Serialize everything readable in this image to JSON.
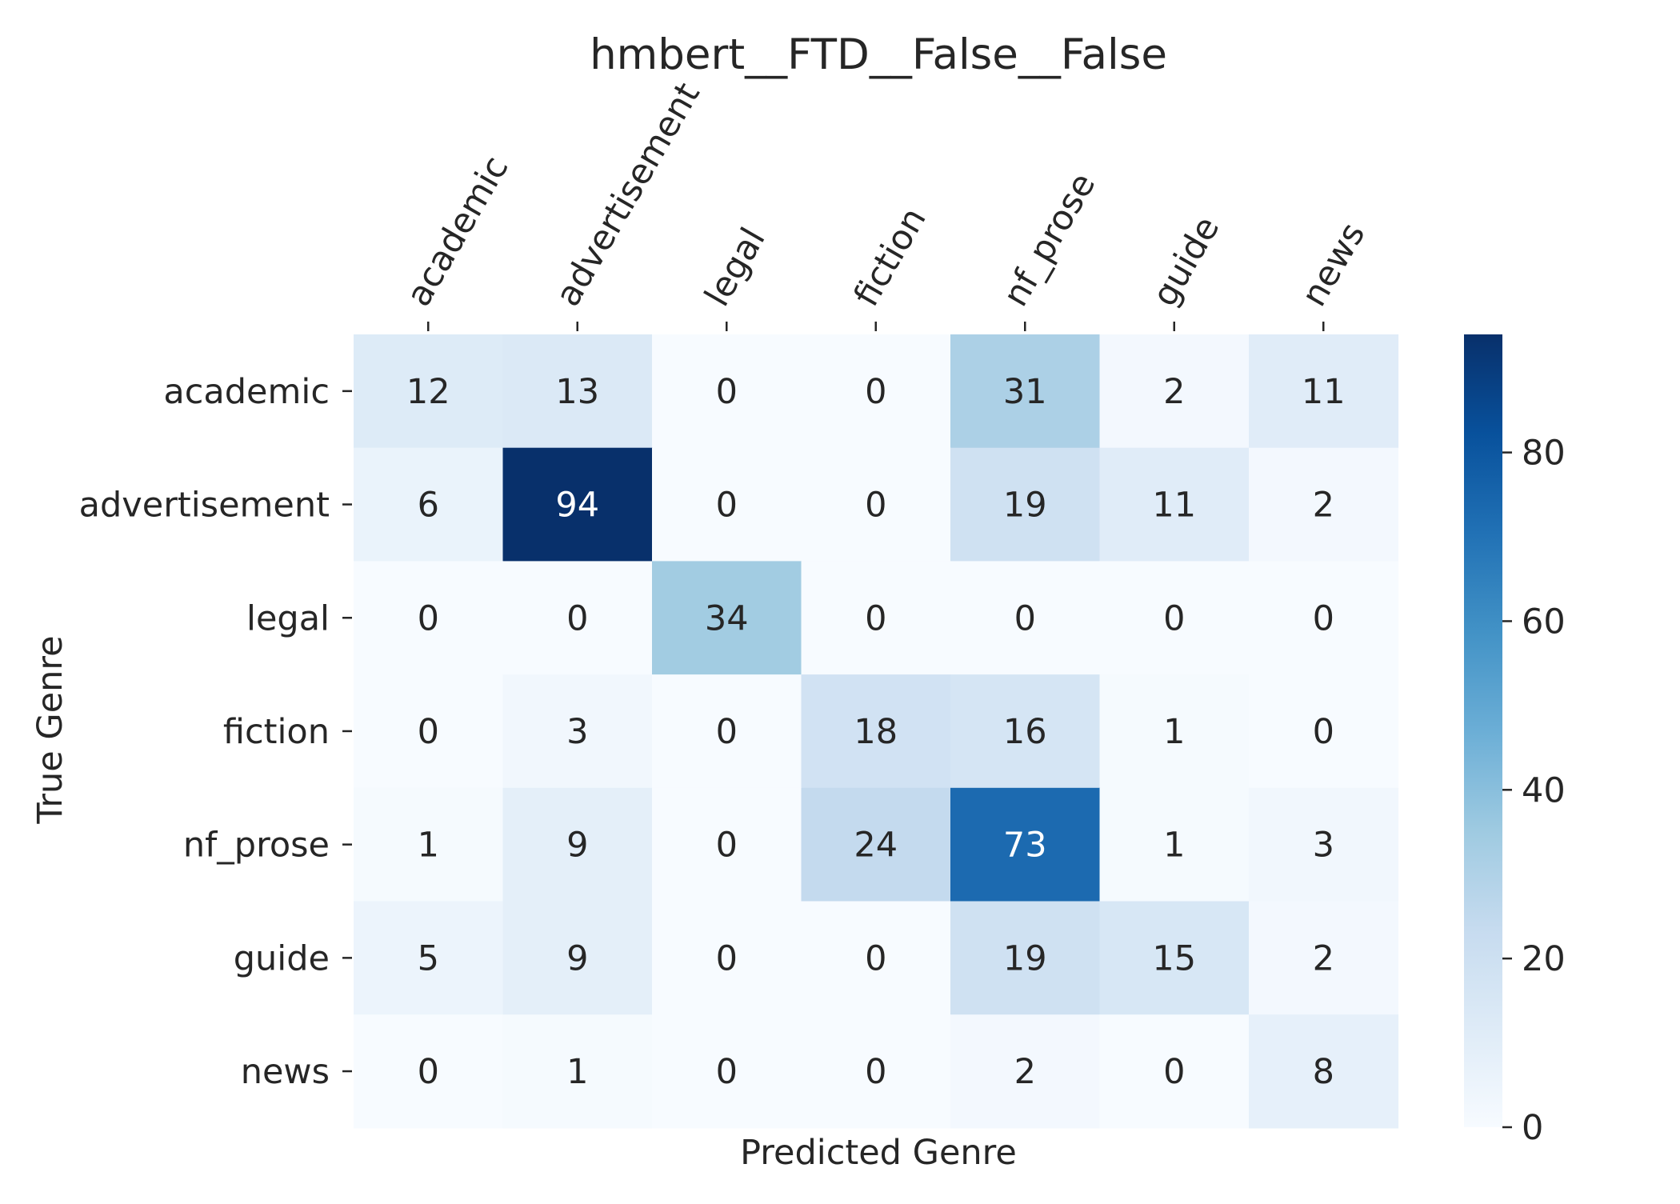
{
  "chart_data": {
    "type": "heatmap",
    "title": "hmbert__FTD__False__False",
    "xlabel": "Predicted Genre",
    "ylabel": "True Genre",
    "x_categories": [
      "academic",
      "advertisement",
      "legal",
      "fiction",
      "nf_prose",
      "guide",
      "news"
    ],
    "y_categories": [
      "academic",
      "advertisement",
      "legal",
      "fiction",
      "nf_prose",
      "guide",
      "news"
    ],
    "values": [
      [
        12,
        13,
        0,
        0,
        31,
        2,
        11
      ],
      [
        6,
        94,
        0,
        0,
        19,
        11,
        2
      ],
      [
        0,
        0,
        34,
        0,
        0,
        0,
        0
      ],
      [
        0,
        3,
        0,
        18,
        16,
        1,
        0
      ],
      [
        1,
        9,
        0,
        24,
        73,
        1,
        3
      ],
      [
        5,
        9,
        0,
        0,
        19,
        15,
        2
      ],
      [
        0,
        1,
        0,
        0,
        2,
        0,
        8
      ]
    ],
    "colormap": "Blues",
    "colorbar": {
      "range": [
        0,
        94
      ],
      "ticks": [
        0,
        20,
        40,
        60,
        80
      ]
    },
    "annotations_shown": true,
    "x_ticks_position": "top",
    "grid": false
  }
}
